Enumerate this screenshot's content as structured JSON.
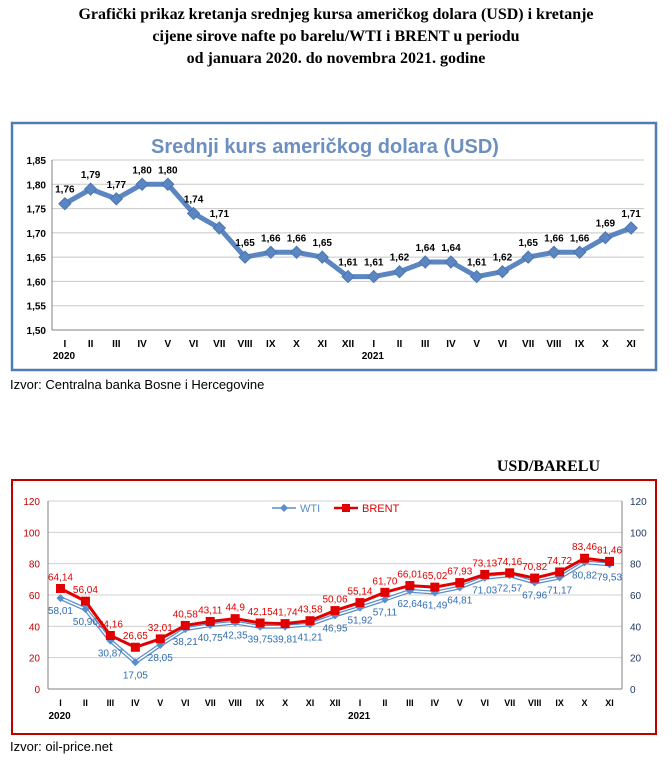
{
  "heading": [
    "Grafički prikaz kretanja srednjeg kursa američkog dolara (USD) i kretanje",
    "cijene sirove nafte po barelu/WTI i BRENT u periodu",
    "od januara 2020. do novembra 2021. godine"
  ],
  "source_usd": "Izvor: Centralna banka Bosne i Hercegovine",
  "source_oil": "Izvor: oil-price.net",
  "unit_oil": "USD/BARELU",
  "colors": {
    "usd_line": "#5b86c2",
    "usd_frame": "#4f7cb5",
    "usd_title": "#6c8fc1",
    "wti": "#5a8dcc",
    "brent": "#e00000",
    "oil_frame": "#c00000",
    "axis_text": "#c00000",
    "right_axis_text": "#1f3864"
  },
  "chart_data": [
    {
      "type": "line",
      "title": "Srednji kurs američkog dolara (USD)",
      "categories": [
        "I",
        "II",
        "III",
        "IV",
        "V",
        "VI",
        "VII",
        "VIII",
        "IX",
        "X",
        "XI",
        "XII",
        "I",
        "II",
        "III",
        "IV",
        "V",
        "VI",
        "VII",
        "VIII",
        "IX",
        "X",
        "XI"
      ],
      "year_labels": [
        {
          "index": 0,
          "label": "2020"
        },
        {
          "index": 12,
          "label": "2021"
        }
      ],
      "values": [
        1.76,
        1.79,
        1.77,
        1.8,
        1.8,
        1.74,
        1.71,
        1.65,
        1.66,
        1.66,
        1.65,
        1.61,
        1.61,
        1.62,
        1.64,
        1.64,
        1.61,
        1.62,
        1.65,
        1.66,
        1.66,
        1.69,
        1.71
      ],
      "data_labels": [
        "1,76",
        "1,79",
        "1,77",
        "1,80",
        "1,80",
        "1,74",
        "1,71",
        "1,65",
        "1,66",
        "1,66",
        "1,65",
        "1,61",
        "1,61",
        "1,62",
        "1,64",
        "1,64",
        "1,61",
        "1,62",
        "1,65",
        "1,66",
        "1,66",
        "1,69",
        "1,71"
      ],
      "ylim": [
        1.5,
        1.85
      ],
      "yticks": [
        1.5,
        1.55,
        1.6,
        1.65,
        1.7,
        1.75,
        1.8,
        1.85
      ],
      "ytick_labels": [
        "1,50",
        "1,55",
        "1,60",
        "1,65",
        "1,70",
        "1,75",
        "1,80",
        "1,85"
      ],
      "grid": true
    },
    {
      "type": "line",
      "categories": [
        "I",
        "II",
        "III",
        "IV",
        "V",
        "VI",
        "VII",
        "VIII",
        "IX",
        "X",
        "XI",
        "XII",
        "I",
        "II",
        "III",
        "IV",
        "V",
        "VI",
        "VII",
        "VIII",
        "IX",
        "X",
        "XI"
      ],
      "year_labels": [
        {
          "index": 0,
          "label": "2020"
        },
        {
          "index": 12,
          "label": "2021"
        }
      ],
      "series": [
        {
          "name": "WTI",
          "values": [
            58.01,
            50.96,
            30.87,
            17.05,
            28.05,
            38.21,
            40.75,
            42.35,
            39.75,
            39.81,
            41.21,
            46.95,
            51.92,
            57.11,
            62.64,
            61.49,
            64.81,
            71.03,
            72.57,
            67.96,
            71.17,
            80.82,
            79.53
          ],
          "labels": [
            "58,01",
            "50,96",
            "30,87",
            "17,05",
            "28,05",
            "38,21",
            "40,75",
            "42,35",
            "39,75",
            "39,81",
            "41,21",
            "46,95",
            "51,92",
            "57,11",
            "62,64",
            "61,49",
            "64,81",
            "71,03",
            "72,57",
            "67,96",
            "71,17",
            "80,82",
            "79,53"
          ]
        },
        {
          "name": "BRENT",
          "values": [
            64.14,
            56.04,
            34.16,
            26.65,
            32.01,
            40.58,
            43.11,
            44.9,
            42.15,
            41.74,
            43.58,
            50.06,
            55.14,
            61.7,
            66.01,
            65.02,
            67.93,
            73.13,
            74.16,
            70.82,
            74.72,
            83.46,
            81.46
          ],
          "labels": [
            "64,14",
            "56,04",
            "34,16",
            "26,65",
            "32,01",
            "40,58",
            "43,11",
            "44,9",
            "42,15",
            "41,74",
            "43,58",
            "50,06",
            "55,14",
            "61,70",
            "66,01",
            "65,02",
            "67,93",
            "73,13",
            "74,16",
            "70,82",
            "74,72",
            "83,46",
            "81,46"
          ]
        }
      ],
      "ylim": [
        0,
        120
      ],
      "yticks": [
        0,
        20,
        40,
        60,
        80,
        100,
        120
      ],
      "ytick_labels": [
        "0",
        "20",
        "40",
        "60",
        "80",
        "100",
        "120"
      ],
      "y2ticks": [
        0,
        20,
        40,
        60,
        80,
        100,
        120
      ],
      "y2tick_labels": [
        "0",
        "20",
        "40",
        "60",
        "80",
        "100",
        "120"
      ],
      "legend": "top-center",
      "grid": true
    }
  ]
}
